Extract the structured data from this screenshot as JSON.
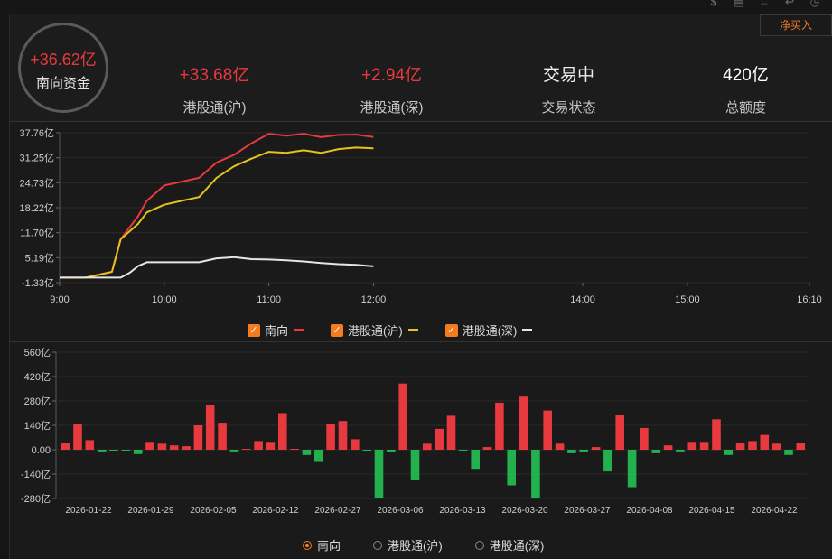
{
  "topbar": {
    "net_buy_button": "净买入"
  },
  "summary": {
    "total": {
      "value": "+36.62亿",
      "label": "南向资金"
    },
    "sh": {
      "value": "+33.68亿",
      "label": "港股通(沪)"
    },
    "sz": {
      "value": "+2.94亿",
      "label": "港股通(深)"
    },
    "status": {
      "value": "交易中",
      "label": "交易状态"
    },
    "quota": {
      "value": "420亿",
      "label": "总额度"
    }
  },
  "colors": {
    "red": "#e8393e",
    "yellow": "#e6c21a",
    "white": "#e6e6e6",
    "green": "#22b14c",
    "accent": "#f47c20"
  },
  "intraday_legend": [
    {
      "label": "南向",
      "color": "#e8393e"
    },
    {
      "label": "港股通(沪)",
      "color": "#e6c21a"
    },
    {
      "label": "港股通(深)",
      "color": "#e6e6e6"
    }
  ],
  "daily_legend": [
    {
      "label": "南向",
      "selected": true
    },
    {
      "label": "港股通(沪)",
      "selected": false
    },
    {
      "label": "港股通(深)",
      "selected": false
    }
  ],
  "chart_data": [
    {
      "type": "line",
      "y_tick_labels": [
        "37.76亿",
        "31.25亿",
        "24.73亿",
        "18.22亿",
        "11.70亿",
        "5.19亿",
        "-1.33亿"
      ],
      "ylim": [
        -1.33,
        37.76
      ],
      "x_tick_labels": [
        "9:00",
        "10:00",
        "11:00",
        "12:00",
        "14:00",
        "15:00",
        "16:10"
      ],
      "x": [
        "9:00",
        "9:15",
        "9:30",
        "9:35",
        "9:40",
        "9:45",
        "9:50",
        "10:00",
        "10:10",
        "10:20",
        "10:30",
        "10:40",
        "10:50",
        "11:00",
        "11:10",
        "11:20",
        "11:30",
        "11:40",
        "11:50",
        "12:00"
      ],
      "series": [
        {
          "name": "南向",
          "values": [
            0,
            0,
            1.5,
            10,
            13,
            16,
            20,
            24,
            25,
            26,
            30,
            32,
            35,
            37.5,
            37,
            37.5,
            36.6,
            37.2,
            37.3,
            36.62
          ]
        },
        {
          "name": "港股通(沪)",
          "values": [
            0,
            0,
            1.5,
            10,
            12,
            14,
            17,
            19,
            20,
            21,
            26,
            29,
            31,
            32.8,
            32.5,
            33.2,
            32.5,
            33.5,
            33.9,
            33.68
          ]
        },
        {
          "name": "港股通(深)",
          "values": [
            0,
            0,
            0,
            0,
            1.2,
            3,
            4,
            4,
            4,
            4,
            5,
            5.3,
            4.8,
            4.7,
            4.5,
            4.2,
            3.8,
            3.5,
            3.3,
            2.94
          ]
        }
      ]
    },
    {
      "type": "bar",
      "y_tick_labels": [
        "560亿",
        "420亿",
        "280亿",
        "140亿",
        "0.00",
        "-140亿",
        "-280亿"
      ],
      "ylim": [
        -280,
        560
      ],
      "x_tick_labels": [
        "2026-01-22",
        "2026-01-29",
        "2026-02-05",
        "2026-02-12",
        "2026-02-27",
        "2026-03-06",
        "2026-03-13",
        "2026-03-20",
        "2026-03-27",
        "2026-04-08",
        "2026-04-15",
        "2026-04-22"
      ],
      "series": [
        {
          "name": "南向",
          "values": [
            40,
            145,
            55,
            -10,
            -5,
            -5,
            -25,
            45,
            35,
            25,
            20,
            140,
            255,
            155,
            -10,
            5,
            50,
            45,
            210,
            5,
            -30,
            -70,
            150,
            165,
            60,
            -5,
            -280,
            -15,
            380,
            -175,
            35,
            120,
            195,
            -5,
            -110,
            15,
            270,
            -205,
            305,
            -280,
            225,
            35,
            -20,
            -15,
            15,
            -125,
            200,
            -215,
            125,
            -20,
            25,
            -10,
            45,
            45,
            175,
            -30,
            40,
            50,
            85,
            35,
            -30,
            40
          ]
        }
      ]
    }
  ]
}
